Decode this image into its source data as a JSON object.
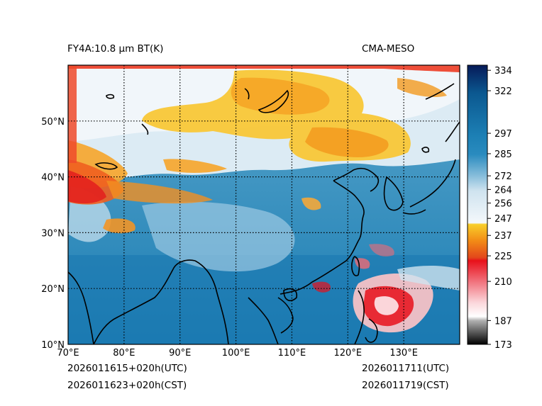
{
  "header": {
    "product_title": "FY4A:10.8 μm BT(K)",
    "model_name": "CMA-MESO"
  },
  "footer": {
    "run_time_utc": "2026011615+020h(UTC)",
    "run_time_cst": "2026011623+020h(CST)",
    "valid_time_utc": "2026011711(UTC)",
    "valid_time_cst": "2026011719(CST)"
  },
  "map": {
    "lon_range": [
      70,
      140
    ],
    "lat_range": [
      10,
      60
    ],
    "lon_ticks": [
      {
        "value": 70,
        "label": "70°E"
      },
      {
        "value": 80,
        "label": "80°E"
      },
      {
        "value": 90,
        "label": "90°E"
      },
      {
        "value": 100,
        "label": "100°E"
      },
      {
        "value": 110,
        "label": "110°E"
      },
      {
        "value": 120,
        "label": "120°E"
      },
      {
        "value": 130,
        "label": "130°E"
      }
    ],
    "lat_ticks": [
      {
        "value": 10,
        "label": "10°N"
      },
      {
        "value": 20,
        "label": "20°N"
      },
      {
        "value": 30,
        "label": "30°N"
      },
      {
        "value": 40,
        "label": "40°N"
      },
      {
        "value": 50,
        "label": "50°N"
      }
    ]
  },
  "colorbar": {
    "range": [
      173,
      337
    ],
    "ticks": [
      173,
      187,
      210,
      225,
      237,
      247,
      256,
      264,
      272,
      285,
      297,
      322,
      334
    ],
    "colors": {
      "black": "#000000",
      "gray": "#b0b0b0",
      "white": "#ffffff",
      "pink": "#f7a1a8",
      "red": "#e8101a",
      "orange": "#f28a16",
      "yellow": "#f8cf2a",
      "light_blue": "#d6e8f2",
      "mid_blue": "#6aafd0",
      "blue": "#1c7fb4",
      "deep_blue": "#0b5890",
      "navy": "#061a58"
    }
  }
}
